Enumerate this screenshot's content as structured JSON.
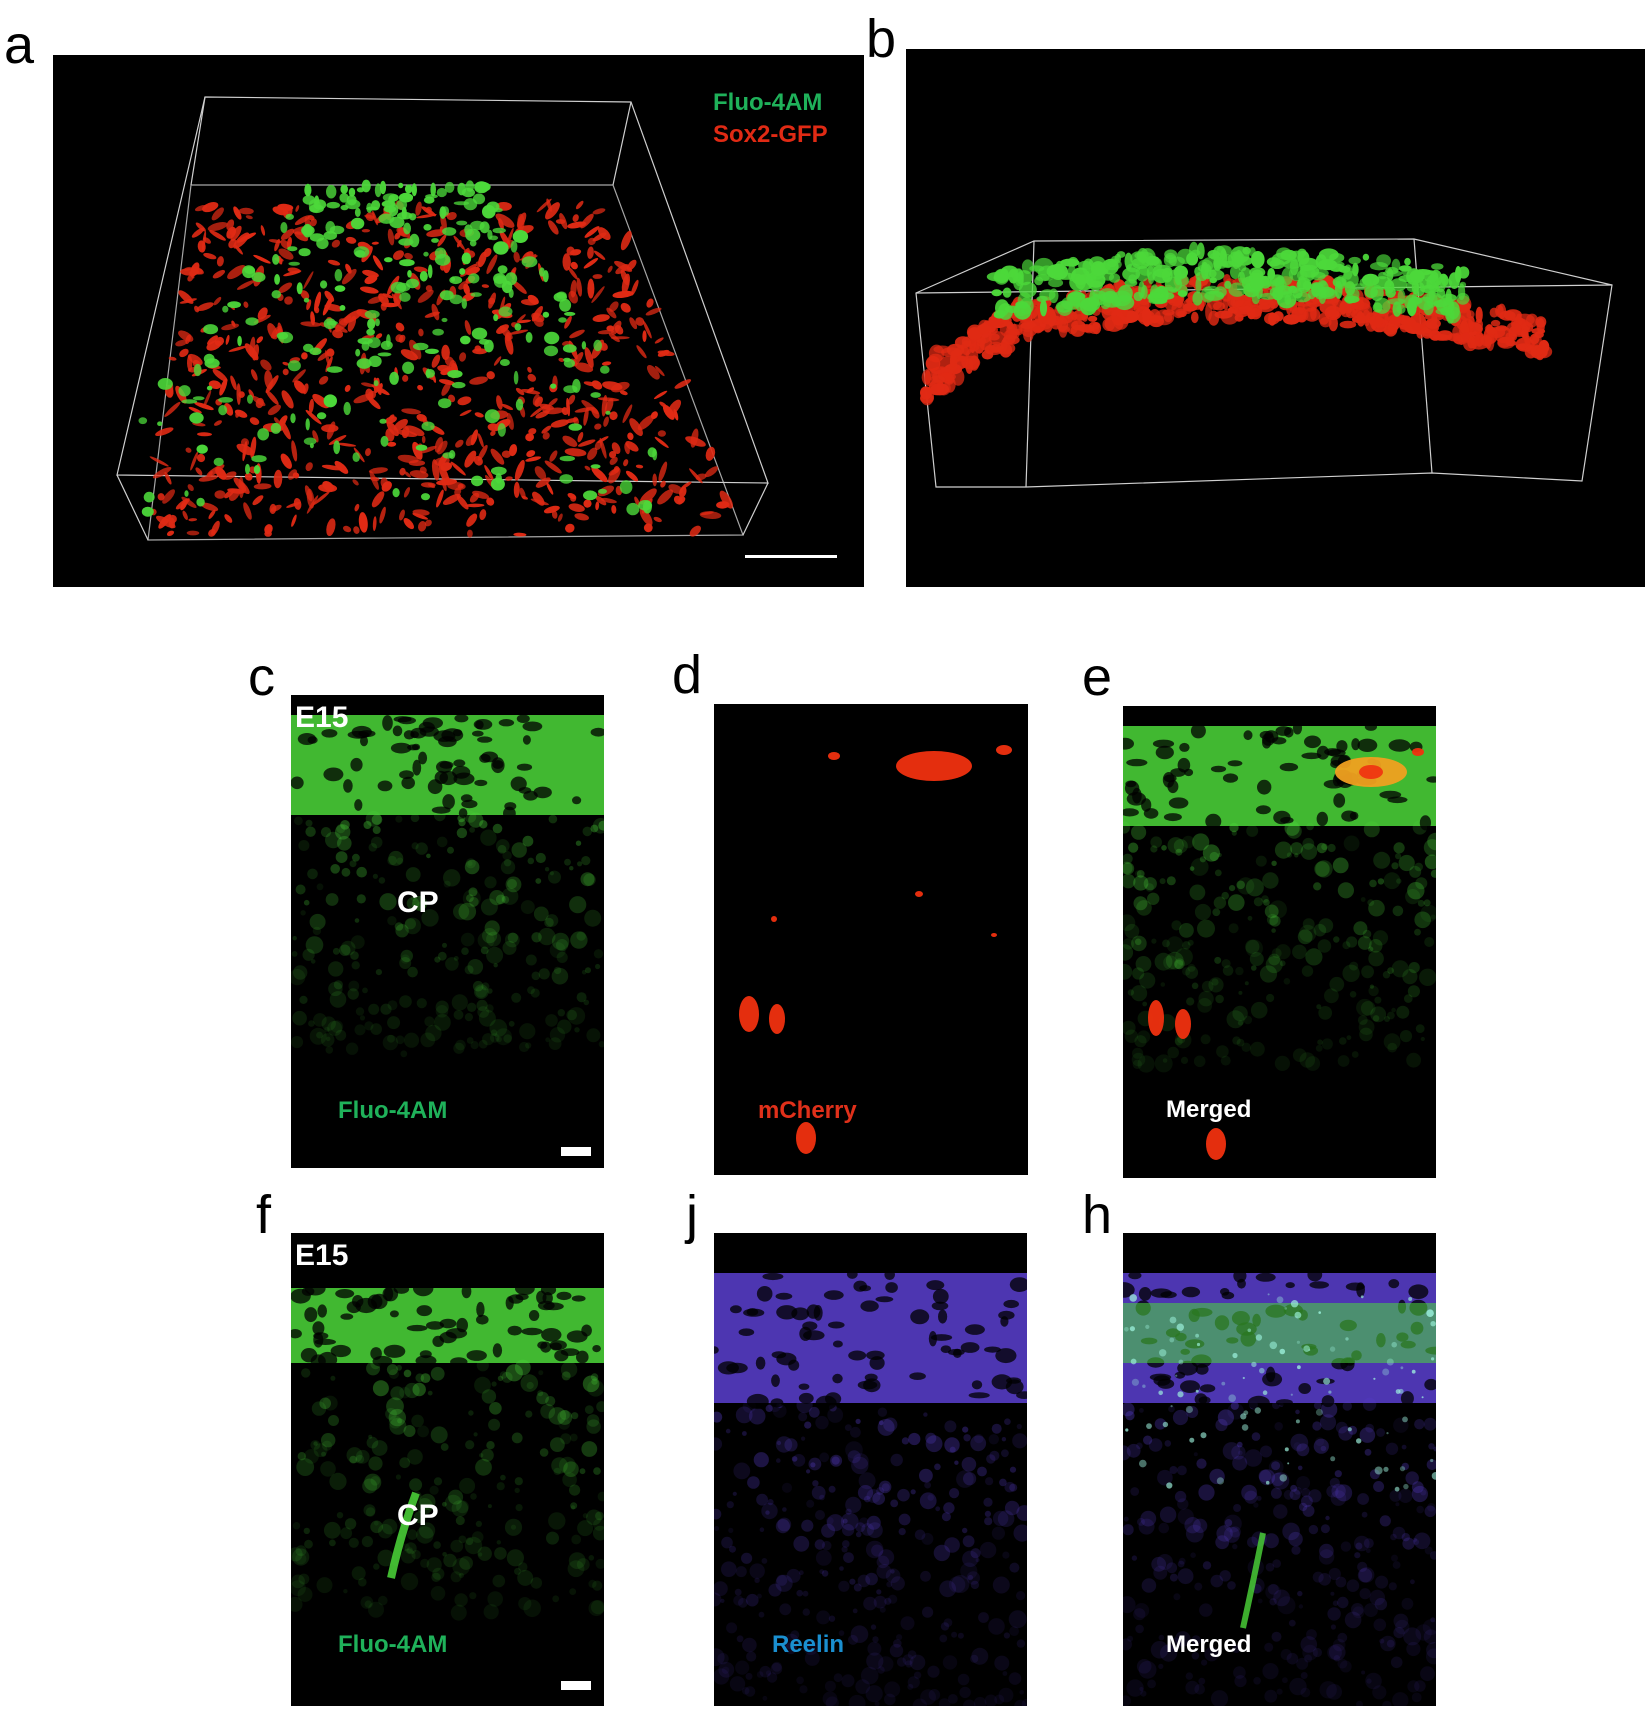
{
  "panels": {
    "a": {
      "letter": "a",
      "legend": [
        "Fluo-4AM",
        "Sox2-GFP"
      ]
    },
    "b": {
      "letter": "b"
    },
    "c": {
      "letter": "c",
      "stage": "E15",
      "region": "CP",
      "channel": "Fluo-4AM"
    },
    "d": {
      "letter": "d",
      "channel": "mCherry"
    },
    "e": {
      "letter": "e",
      "channel": "Merged"
    },
    "f": {
      "letter": "f",
      "stage": "E15",
      "region": "CP",
      "channel": "Fluo-4AM"
    },
    "j": {
      "letter": "j",
      "channel": "Reelin"
    },
    "h": {
      "letter": "h",
      "channel": "Merged"
    }
  },
  "colors": {
    "fluo": "#4cd83a",
    "fluo_label": "#1fb15a",
    "sox2": "#e02a14",
    "mcherry": "#f0300f",
    "reelin": "#5a3fd0",
    "reelin_label": "#1a8fd0",
    "white": "#ffffff"
  }
}
